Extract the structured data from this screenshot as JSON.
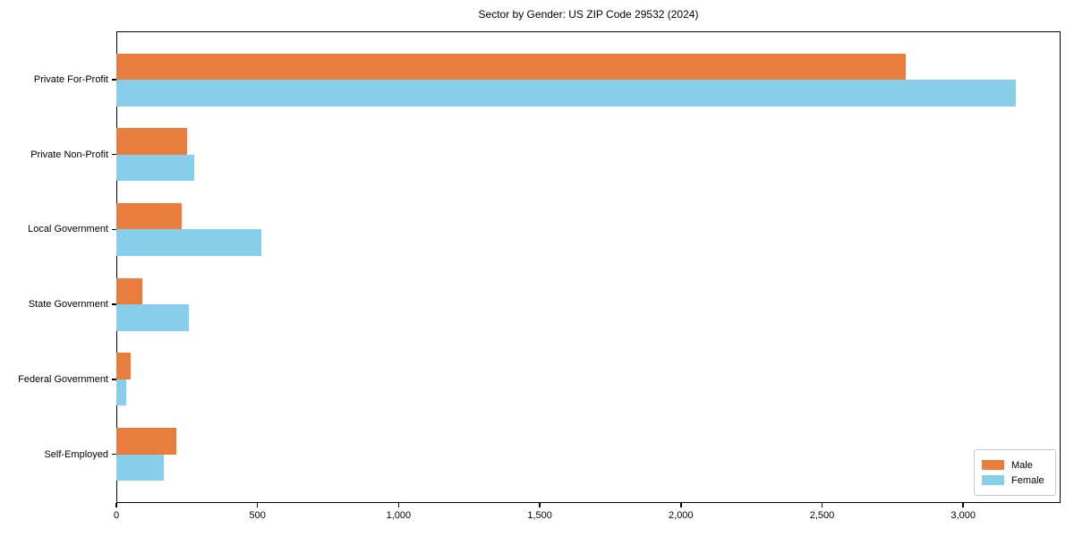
{
  "title": "Sector by Gender: US ZIP Code 29532 (2024)",
  "chart_data": {
    "type": "bar",
    "orientation": "horizontal",
    "title": "Sector by Gender: US ZIP Code 29532 (2024)",
    "categories": [
      "Private For-Profit",
      "Private Non-Profit",
      "Local Government",
      "State Government",
      "Federal Government",
      "Self-Employed"
    ],
    "series": [
      {
        "name": "Male",
        "color": "#e87d3e",
        "values": [
          2798,
          252,
          232,
          91,
          51,
          212
        ]
      },
      {
        "name": "Female",
        "color": "#87ceeb",
        "values": [
          3187,
          277,
          515,
          258,
          36,
          168
        ]
      }
    ],
    "xlabel": "",
    "ylabel": "",
    "xlim": [
      0,
      3345
    ],
    "x_ticks": [
      0,
      500,
      1000,
      1500,
      2000,
      2500,
      3000
    ],
    "x_tick_labels": [
      "0",
      "500",
      "1,000",
      "1,500",
      "2,000",
      "2,500",
      "3,000"
    ],
    "grid": false,
    "legend_position": "lower right",
    "frame": "full-box"
  }
}
